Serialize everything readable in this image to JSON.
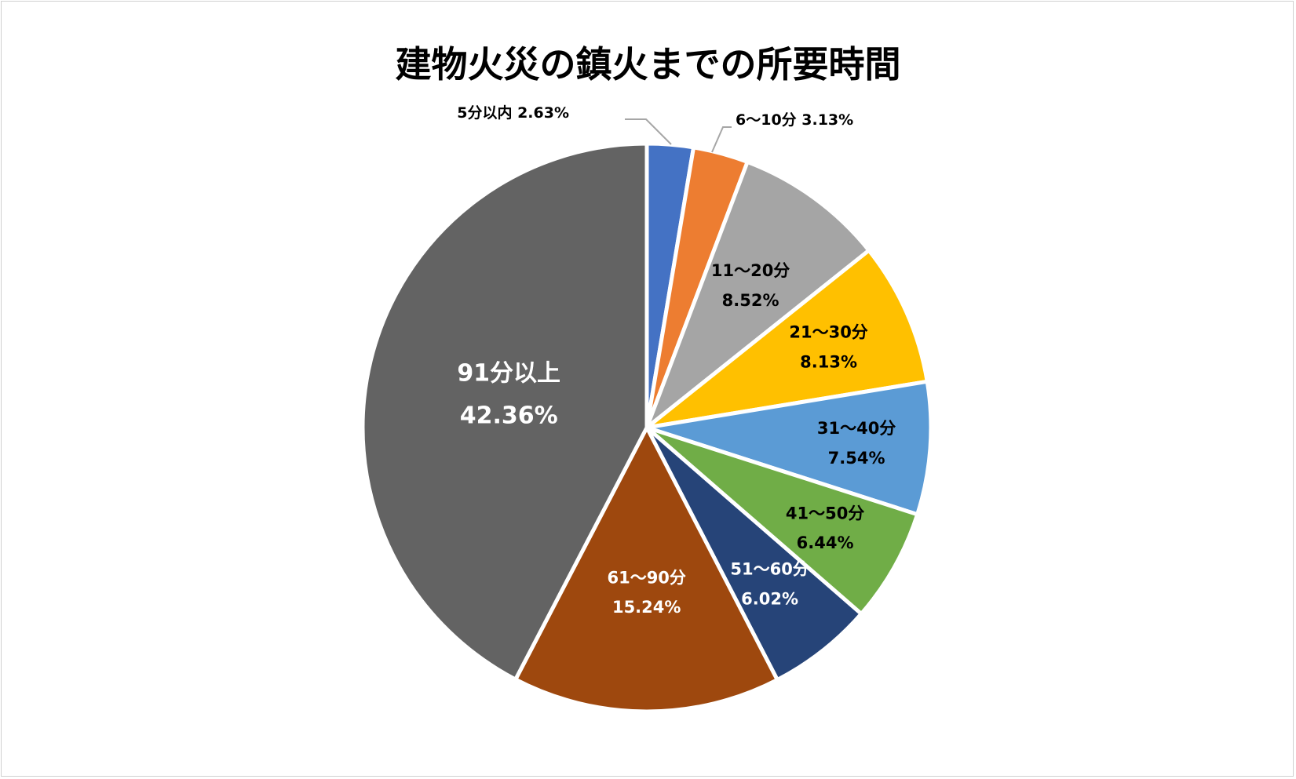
{
  "chart_data": {
    "type": "pie",
    "title": "建物火災の鎮火までの所要時間",
    "slices": [
      {
        "label": "5分以内",
        "value": 2.63,
        "pct_text": "2.63%",
        "color": "#4472c4",
        "text_color": "#000000",
        "placement": "outside"
      },
      {
        "label": "6～10分",
        "value": 3.13,
        "pct_text": "3.13%",
        "color": "#ed7d31",
        "text_color": "#000000",
        "placement": "outside"
      },
      {
        "label": "11～20分",
        "value": 8.52,
        "pct_text": "8.52%",
        "color": "#a5a5a5",
        "text_color": "#000000",
        "placement": "inside"
      },
      {
        "label": "21～30分",
        "value": 8.13,
        "pct_text": "8.13%",
        "color": "#ffc000",
        "text_color": "#000000",
        "placement": "inside"
      },
      {
        "label": "31～40分",
        "value": 7.54,
        "pct_text": "7.54%",
        "color": "#5b9bd5",
        "text_color": "#000000",
        "placement": "inside"
      },
      {
        "label": "41～50分",
        "value": 6.44,
        "pct_text": "6.44%",
        "color": "#70ad47",
        "text_color": "#000000",
        "placement": "inside"
      },
      {
        "label": "51～60分",
        "value": 6.02,
        "pct_text": "6.02%",
        "color": "#264478",
        "text_color": "#ffffff",
        "placement": "inside"
      },
      {
        "label": "61～90分",
        "value": 15.24,
        "pct_text": "15.24%",
        "color": "#9e480e",
        "text_color": "#ffffff",
        "placement": "inside"
      },
      {
        "label": "91分以上",
        "value": 42.36,
        "pct_text": "42.36%",
        "color": "#636363",
        "text_color": "#ffffff",
        "placement": "inside"
      }
    ],
    "legend": "none"
  }
}
